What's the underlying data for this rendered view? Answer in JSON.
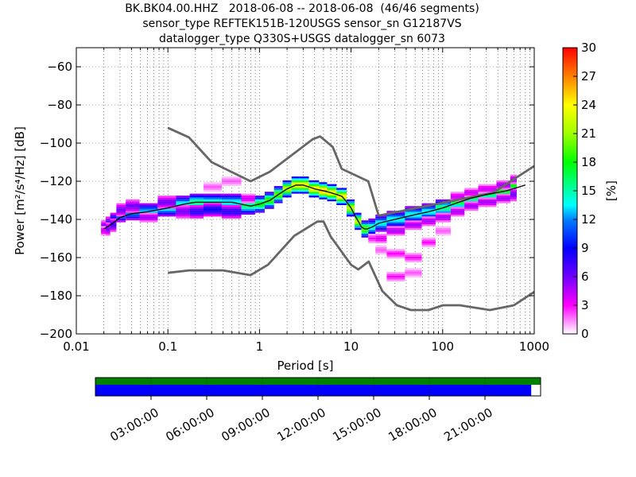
{
  "chart_data": {
    "type": "heatmap",
    "title_lines": [
      "BK.BK04.00.HHZ   2018-06-08 -- 2018-06-08  (46/46 segments)",
      "sensor_type REFTEK151B-120USGS sensor_sn G12187VS",
      "datalogger_type Q330S+USGS datalogger_sn 6073"
    ],
    "xlabel": "Period [s]",
    "ylabel": "Power [m²/s⁴/Hz] [dB]",
    "x_scale": "log",
    "xlim": [
      0.01,
      1000
    ],
    "ylim": [
      -200,
      -50
    ],
    "x_ticks": [
      {
        "value": 0.01,
        "label": "0.01"
      },
      {
        "value": 0.1,
        "label": "0.1"
      },
      {
        "value": 1,
        "label": "1"
      },
      {
        "value": 10,
        "label": "10"
      },
      {
        "value": 100,
        "label": "100"
      },
      {
        "value": 1000,
        "label": "1000"
      }
    ],
    "y_ticks": [
      {
        "value": -60,
        "label": "−60"
      },
      {
        "value": -80,
        "label": "−80"
      },
      {
        "value": -100,
        "label": "−100"
      },
      {
        "value": -120,
        "label": "−120"
      },
      {
        "value": -140,
        "label": "−140"
      },
      {
        "value": -160,
        "label": "−160"
      },
      {
        "value": -180,
        "label": "−180"
      },
      {
        "value": -200,
        "label": "−200"
      }
    ],
    "grid": true,
    "colorbar": {
      "label": "[%]",
      "range": [
        0,
        30
      ],
      "ticks": [
        {
          "value": 0,
          "label": "0"
        },
        {
          "value": 3,
          "label": "3"
        },
        {
          "value": 6,
          "label": "6"
        },
        {
          "value": 9,
          "label": "9"
        },
        {
          "value": 12,
          "label": "12"
        },
        {
          "value": 15,
          "label": "15"
        },
        {
          "value": 18,
          "label": "18"
        },
        {
          "value": 21,
          "label": "21"
        },
        {
          "value": 24,
          "label": "24"
        },
        {
          "value": 27,
          "label": "27"
        },
        {
          "value": 30,
          "label": "30"
        }
      ]
    },
    "noise_model_high": {
      "period": [
        0.1,
        0.17,
        0.3,
        0.8,
        1.3,
        3.8,
        4.6,
        6.3,
        7.9,
        15.4,
        20,
        354.8,
        1000
      ],
      "power": [
        -92,
        -97,
        -110,
        -120,
        -115,
        -98,
        -96.5,
        -102,
        -113.5,
        -120,
        -138,
        -126,
        -112
      ]
    },
    "noise_model_low": {
      "period": [
        0.1,
        0.17,
        0.4,
        0.8,
        1.24,
        2.4,
        4.3,
        5,
        6,
        10,
        12,
        15.6,
        21.9,
        31.6,
        45,
        70,
        101,
        154,
        328,
        600,
        1000
      ],
      "power": [
        -168,
        -166.7,
        -166.7,
        -169.2,
        -163.7,
        -148.6,
        -141.1,
        -141.1,
        -149,
        -163.8,
        -166.2,
        -162.1,
        -177.5,
        -185,
        -187.5,
        -187.5,
        -185,
        -185,
        -187.5,
        -185,
        -178
      ]
    },
    "mode_curve": {
      "period": [
        0.02,
        0.025,
        0.03,
        0.04,
        0.06,
        0.1,
        0.15,
        0.2,
        0.3,
        0.5,
        0.8,
        1.0,
        1.3,
        1.6,
        2.0,
        2.5,
        3.0,
        3.5,
        4.0,
        5.0,
        6.0,
        7.0,
        8.0,
        9.0,
        10,
        11,
        12,
        13,
        14,
        15,
        17,
        20,
        30,
        50,
        70,
        100,
        150,
        200,
        300,
        500,
        800
      ],
      "power": [
        -145,
        -142,
        -139,
        -137,
        -136,
        -134,
        -132,
        -131,
        -131,
        -131,
        -133,
        -132,
        -130,
        -127,
        -124,
        -122,
        -122,
        -123,
        -124,
        -125,
        -126,
        -127,
        -128,
        -131,
        -134,
        -138,
        -141,
        -144,
        -145,
        -145,
        -144,
        -142,
        -140,
        -137.5,
        -136,
        -134,
        -131,
        -129,
        -127,
        -125,
        -122
      ]
    },
    "pdf_rows": [
      {
        "period": 0.02,
        "centers": [
          [
            -144,
            6
          ],
          [
            -146,
            4
          ]
        ]
      },
      {
        "period": 0.022,
        "centers": [
          [
            -142,
            8
          ],
          [
            -145,
            6
          ]
        ]
      },
      {
        "period": 0.025,
        "centers": [
          [
            -140,
            10
          ],
          [
            -143,
            7
          ]
        ]
      },
      {
        "period": 0.03,
        "centers": [
          [
            -138,
            12
          ],
          [
            -135,
            6
          ]
        ]
      },
      {
        "period": 0.04,
        "centers": [
          [
            -137,
            12
          ],
          [
            -133,
            6
          ]
        ]
      },
      {
        "period": 0.06,
        "centers": [
          [
            -136,
            13
          ],
          [
            -139,
            5
          ]
        ]
      },
      {
        "period": 0.1,
        "centers": [
          [
            -134,
            14
          ],
          [
            -131,
            6
          ]
        ]
      },
      {
        "period": 0.15,
        "centers": [
          [
            -132,
            14
          ],
          [
            -136,
            6
          ]
        ]
      },
      {
        "period": 0.2,
        "centers": [
          [
            -131,
            16
          ],
          [
            -136,
            8
          ]
        ]
      },
      {
        "period": 0.3,
        "centers": [
          [
            -131,
            15
          ],
          [
            -135,
            9
          ],
          [
            -123,
            2
          ]
        ]
      },
      {
        "period": 0.5,
        "centers": [
          [
            -131,
            14
          ],
          [
            -136,
            8
          ],
          [
            -120,
            2
          ]
        ]
      },
      {
        "period": 0.8,
        "centers": [
          [
            -133,
            16
          ],
          [
            -129,
            4
          ]
        ]
      },
      {
        "period": 1.0,
        "centers": [
          [
            -132,
            18
          ]
        ]
      },
      {
        "period": 1.3,
        "centers": [
          [
            -130,
            19
          ]
        ]
      },
      {
        "period": 1.6,
        "centers": [
          [
            -127,
            20
          ]
        ]
      },
      {
        "period": 2.0,
        "centers": [
          [
            -124,
            22
          ]
        ]
      },
      {
        "period": 2.5,
        "centers": [
          [
            -122,
            24
          ]
        ]
      },
      {
        "period": 3.0,
        "centers": [
          [
            -122,
            24
          ]
        ]
      },
      {
        "period": 4.0,
        "centers": [
          [
            -124,
            24
          ]
        ]
      },
      {
        "period": 5.0,
        "centers": [
          [
            -125,
            26
          ]
        ]
      },
      {
        "period": 6.0,
        "centers": [
          [
            -126,
            24
          ]
        ]
      },
      {
        "period": 8.0,
        "centers": [
          [
            -128,
            24
          ]
        ]
      },
      {
        "period": 10,
        "centers": [
          [
            -134,
            22
          ]
        ]
      },
      {
        "period": 12,
        "centers": [
          [
            -141,
            22
          ]
        ]
      },
      {
        "period": 14,
        "centers": [
          [
            -145,
            20
          ]
        ]
      },
      {
        "period": 17,
        "centers": [
          [
            -144,
            15
          ],
          [
            -150,
            3
          ]
        ]
      },
      {
        "period": 20,
        "centers": [
          [
            -142,
            14
          ],
          [
            -150,
            4
          ],
          [
            -156,
            2
          ]
        ]
      },
      {
        "period": 30,
        "centers": [
          [
            -140,
            14
          ],
          [
            -146,
            5
          ],
          [
            -158,
            3
          ],
          [
            -170,
            3
          ]
        ]
      },
      {
        "period": 50,
        "centers": [
          [
            -137.5,
            14
          ],
          [
            -143,
            5
          ],
          [
            -160,
            3
          ],
          [
            -168,
            2
          ]
        ]
      },
      {
        "period": 70,
        "centers": [
          [
            -136,
            14
          ],
          [
            -141,
            5
          ],
          [
            -152,
            3
          ]
        ]
      },
      {
        "period": 100,
        "centers": [
          [
            -134,
            16
          ],
          [
            -139,
            5
          ],
          [
            -146,
            2
          ]
        ]
      },
      {
        "period": 150,
        "centers": [
          [
            -131,
            17
          ],
          [
            -136,
            5
          ],
          [
            -128,
            4
          ]
        ]
      },
      {
        "period": 200,
        "centers": [
          [
            -129,
            16
          ],
          [
            -133,
            5
          ],
          [
            -126,
            4
          ]
        ]
      },
      {
        "period": 300,
        "centers": [
          [
            -127,
            16
          ],
          [
            -131,
            5
          ],
          [
            -124,
            4
          ]
        ]
      },
      {
        "period": 500,
        "centers": [
          [
            -125,
            18
          ],
          [
            -129,
            5
          ],
          [
            -122,
            5
          ]
        ]
      },
      {
        "period": 600,
        "centers": [
          [
            -122,
            18
          ],
          [
            -127,
            6
          ],
          [
            -119,
            5
          ]
        ]
      }
    ],
    "timeline": {
      "coverage_color": "#008000",
      "gaps_color": "#0000ff",
      "blue_fraction": 0.979,
      "labels": [
        "03:00:00",
        "06:00:00",
        "09:00:00",
        "12:00:00",
        "15:00:00",
        "18:00:00",
        "21:00:00"
      ]
    }
  }
}
